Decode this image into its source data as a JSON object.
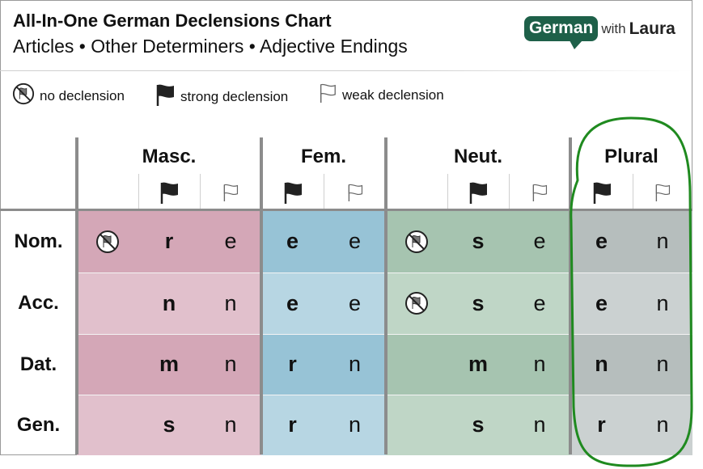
{
  "header": {
    "title": "All-In-One German Declensions Chart",
    "subtitle": "Articles • Other Determiners • Adjective Endings"
  },
  "logo": {
    "german": "German",
    "with": "with",
    "laura": "Laura"
  },
  "legend": [
    {
      "icon": "no-declension-icon",
      "label": "no declension"
    },
    {
      "icon": "strong-declension-icon",
      "label": "strong declension"
    },
    {
      "icon": "weak-declension-icon",
      "label": "weak declension"
    }
  ],
  "genders": [
    "Masc.",
    "Fem.",
    "Neut.",
    "Plural"
  ],
  "cases": [
    "Nom.",
    "Acc.",
    "Dat.",
    "Gen."
  ],
  "columns": [
    {
      "group": "masc",
      "type": "none"
    },
    {
      "group": "masc",
      "type": "strong"
    },
    {
      "group": "masc",
      "type": "weak"
    },
    {
      "group": "fem",
      "type": "strong"
    },
    {
      "group": "fem",
      "type": "weak"
    },
    {
      "group": "neut",
      "type": "none"
    },
    {
      "group": "neut",
      "type": "strong"
    },
    {
      "group": "neut",
      "type": "weak"
    },
    {
      "group": "plural",
      "type": "strong"
    },
    {
      "group": "plural",
      "type": "weak"
    }
  ],
  "table": [
    [
      "no-declension-icon",
      "r",
      "e",
      "e",
      "e",
      "no-declension-icon",
      "s",
      "e",
      "e",
      "n"
    ],
    [
      "",
      "n",
      "n",
      "e",
      "e",
      "no-declension-icon",
      "s",
      "e",
      "e",
      "n"
    ],
    [
      "",
      "m",
      "n",
      "r",
      "n",
      "",
      "m",
      "n",
      "n",
      "n"
    ],
    [
      "",
      "s",
      "n",
      "r",
      "n",
      "",
      "s",
      "n",
      "r",
      "n"
    ]
  ],
  "colors": {
    "masc_dark": "#d4a7b7",
    "masc_light": "#e1c0cc",
    "fem_dark": "#97c3d6",
    "fem_light": "#b7d6e3",
    "neut_dark": "#a6c4b0",
    "neut_light": "#bfd6c6",
    "plural_dark": "#b6bebd",
    "plural_light": "#cbd1d1",
    "highlight": "#1f8a1f",
    "logo": "#1e6049"
  }
}
